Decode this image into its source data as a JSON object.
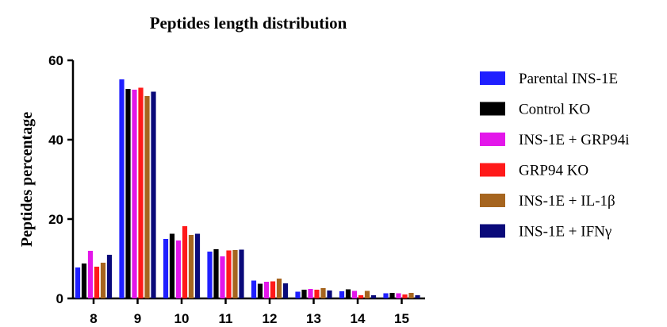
{
  "chart_data": {
    "type": "bar",
    "title": "Peptides length distribution",
    "xlabel": "",
    "ylabel": "Peptides percentage",
    "ylim": [
      0,
      60
    ],
    "yticks": [
      0,
      20,
      40,
      60
    ],
    "grid": false,
    "legend_position": "right",
    "categories": [
      "8",
      "9",
      "10",
      "11",
      "12",
      "13",
      "14",
      "15"
    ],
    "series": [
      {
        "name": "Parental INS-1E",
        "color": "#1f1fff",
        "values": [
          7.8,
          55.2,
          15.0,
          11.8,
          4.5,
          1.7,
          1.8,
          1.3
        ]
      },
      {
        "name": "Control KO",
        "color": "#000000",
        "values": [
          8.8,
          52.8,
          16.3,
          12.4,
          3.7,
          2.2,
          2.3,
          1.4
        ]
      },
      {
        "name": "INS-1E + GRP94i",
        "color": "#e317ea",
        "values": [
          12.0,
          52.6,
          14.6,
          10.6,
          4.2,
          2.4,
          1.9,
          1.3
        ]
      },
      {
        "name": "GRP94 KO",
        "color": "#ff1a1a",
        "values": [
          8.0,
          53.1,
          18.2,
          12.1,
          4.3,
          2.2,
          0.8,
          1.0
        ]
      },
      {
        "name": "INS-1E + IL-1β",
        "color": "#a6651f",
        "values": [
          9.0,
          51.0,
          16.0,
          12.2,
          5.0,
          2.6,
          1.9,
          1.4
        ]
      },
      {
        "name": "INS-1E + IFNγ",
        "color": "#0a0a7a",
        "values": [
          11.0,
          52.1,
          16.3,
          12.3,
          3.8,
          2.0,
          0.8,
          0.8
        ]
      }
    ]
  }
}
